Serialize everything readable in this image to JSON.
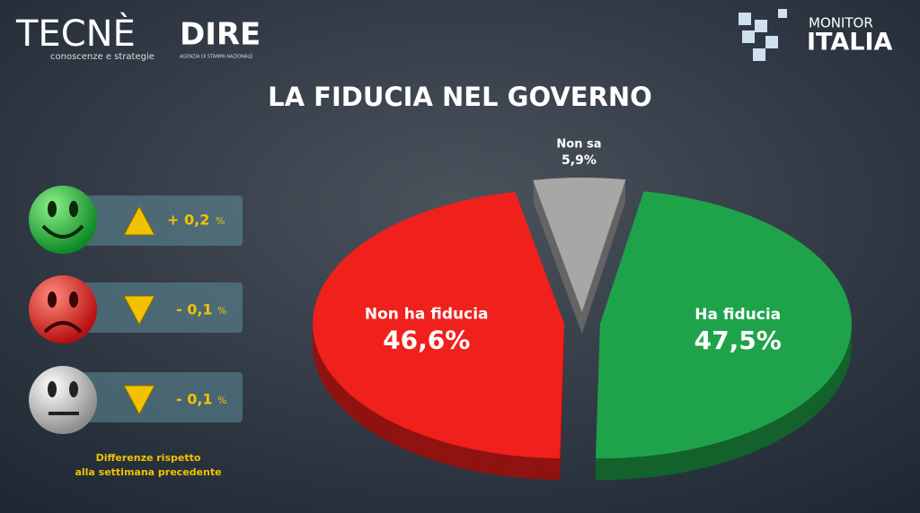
{
  "header": {
    "tecne": "TECNÈ",
    "tecne_sub": "conoscenze e strategie",
    "dire": "DIRE",
    "dire_sub": "AGENZIA DI STAMPA NAZIONALE",
    "monitor": "MONITOR",
    "italia": "ITALIA"
  },
  "chart_data": {
    "type": "pie",
    "title": "LA FIDUCIA NEL GOVERNO",
    "categories": [
      "Ha fiducia",
      "Non ha fiducia",
      "Non sa"
    ],
    "values": [
      47.5,
      46.6,
      5.9
    ],
    "value_labels": [
      "47,5%",
      "46,6%",
      "5,9%"
    ],
    "colors": [
      "#1fa34a",
      "#f0201c",
      "#a7a7a7"
    ]
  },
  "changes": {
    "items": [
      {
        "value": 0.2,
        "label": "+ 0,2"
      },
      {
        "value": -0.1,
        "label": "- 0,1"
      },
      {
        "value": -0.1,
        "label": "- 0,1"
      }
    ],
    "unit": "%",
    "note": [
      "Differenze rispetto",
      "alla settimana precedente"
    ]
  }
}
